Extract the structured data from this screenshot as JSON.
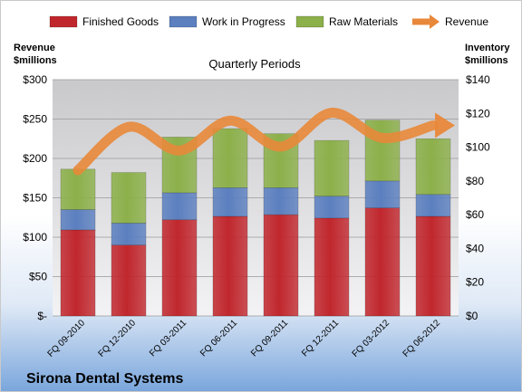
{
  "company_name": "Sirona Dental Systems",
  "chart_data": {
    "type": "bar",
    "stacked": true,
    "subtitle": "Quarterly Periods",
    "y_left_label": [
      "Revenue",
      "$millions"
    ],
    "y_right_label": [
      "Inventory",
      "$millions"
    ],
    "categories": [
      "FQ 09-2010",
      "FQ 12-2010",
      "FQ 03-2011",
      "FQ 06-2011",
      "FQ 09-2011",
      "FQ 12-2011",
      "FQ 03-2012",
      "FQ 06-2012"
    ],
    "series": [
      {
        "name": "Finished Goods",
        "axis": "right",
        "type": "bar",
        "color": "#c0272d",
        "values": [
          51,
          42,
          57,
          59,
          60,
          58,
          64,
          59
        ]
      },
      {
        "name": "Work in Progress",
        "axis": "right",
        "type": "bar",
        "color": "#5b7fbf",
        "values": [
          12,
          13,
          16,
          17,
          16,
          13,
          16,
          13
        ]
      },
      {
        "name": "Raw Materials",
        "axis": "right",
        "type": "bar",
        "color": "#8cb04a",
        "values": [
          24,
          30,
          33,
          35,
          32,
          33,
          36,
          33
        ]
      },
      {
        "name": "Revenue",
        "axis": "left",
        "type": "line",
        "color": "#e8883a",
        "values": [
          185,
          240,
          210,
          248,
          215,
          258,
          226,
          242
        ]
      }
    ],
    "y_left": {
      "min": 0,
      "max": 300,
      "ticks": [
        "$-",
        "$50",
        "$100",
        "$150",
        "$200",
        "$250",
        "$300"
      ]
    },
    "y_right": {
      "min": 0,
      "max": 140,
      "ticks": [
        "$0",
        "$20",
        "$40",
        "$60",
        "$80",
        "$100",
        "$120",
        "$140"
      ]
    },
    "legend_position": "top",
    "grid": true
  }
}
